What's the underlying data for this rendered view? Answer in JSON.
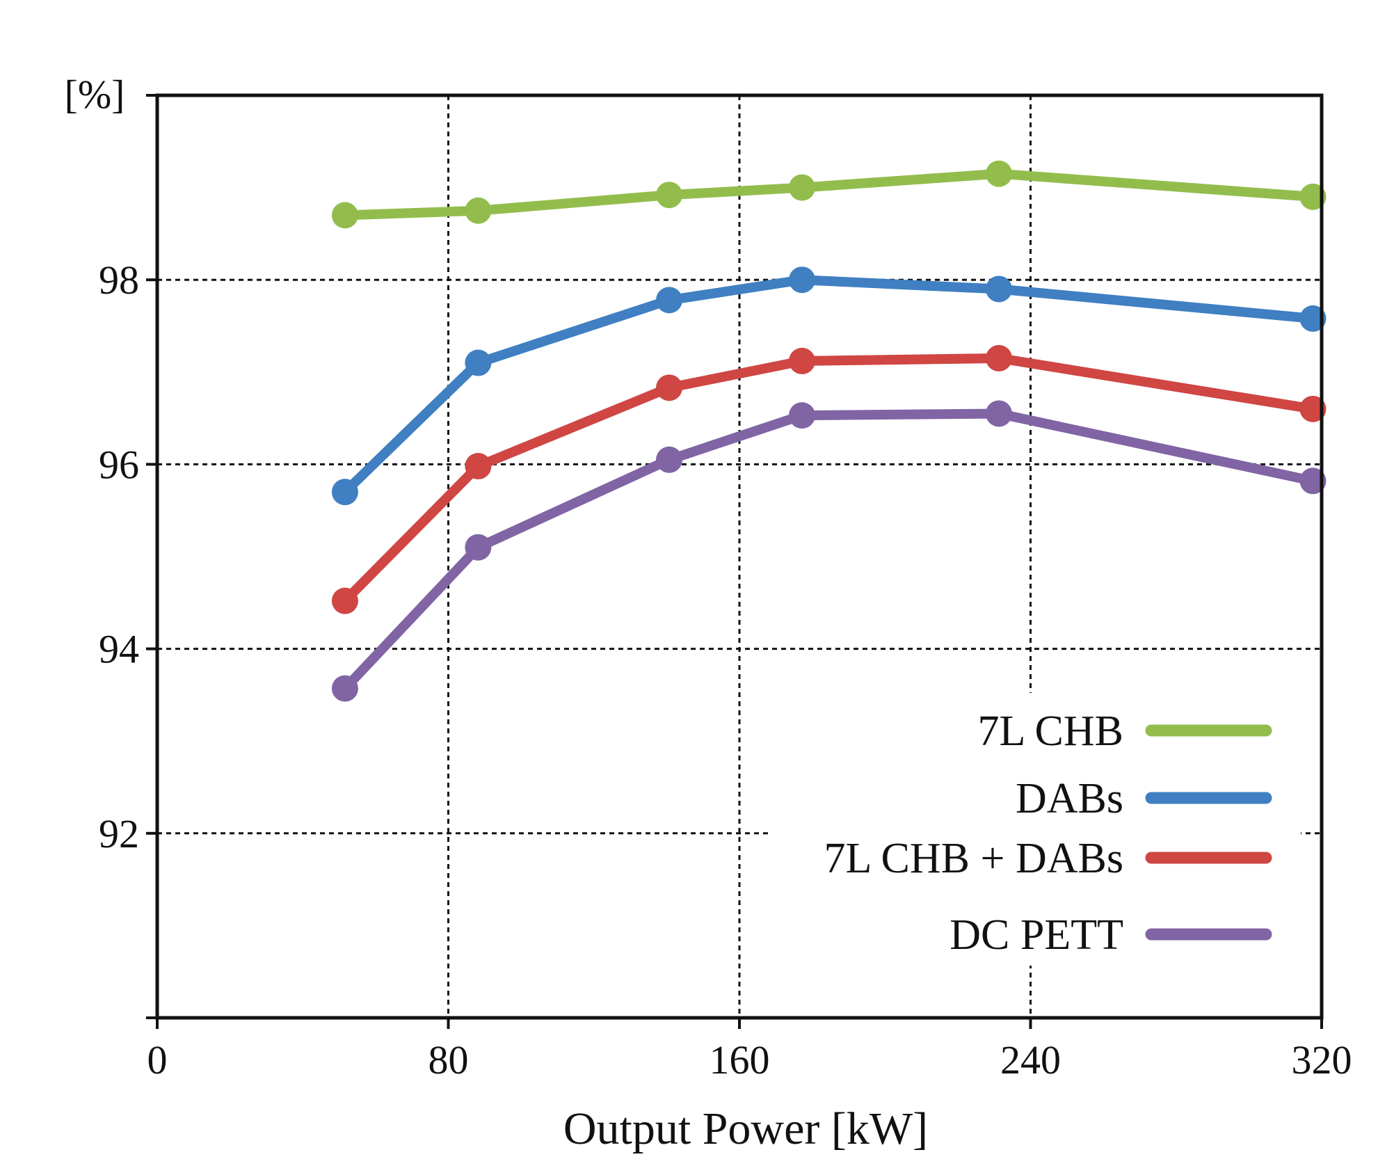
{
  "chart_data": {
    "type": "line",
    "title": "",
    "xlabel": "Output Power [kW]",
    "ylabel": "[%]",
    "xlim": [
      0,
      320
    ],
    "ylim": [
      90,
      100
    ],
    "x_ticks": [
      0,
      80,
      160,
      240,
      320
    ],
    "x_tick_labels": [
      "0",
      "80",
      "160",
      "240",
      "320"
    ],
    "y_ticks": [
      92,
      94,
      96,
      98
    ],
    "y_tick_labels": [
      "92",
      "94",
      "96",
      "98"
    ],
    "grid": true,
    "legend_position": "bottom-right",
    "x": [
      51.6,
      88.2,
      140.7,
      177.2,
      231.3,
      317.6
    ],
    "series": [
      {
        "name": "7L CHB",
        "color": "#92bd4d",
        "values": [
          98.7,
          98.75,
          98.92,
          99.0,
          99.15,
          98.9
        ]
      },
      {
        "name": "DABs",
        "color": "#3f7fc2",
        "values": [
          95.7,
          97.1,
          97.78,
          98.0,
          97.9,
          97.58
        ]
      },
      {
        "name": "7L CHB + DABs",
        "color": "#cf4643",
        "values": [
          94.52,
          95.98,
          96.83,
          97.12,
          97.15,
          96.6
        ]
      },
      {
        "name": "DC PETT",
        "color": "#8064a4",
        "values": [
          93.57,
          95.1,
          96.05,
          96.53,
          96.55,
          95.82
        ]
      }
    ]
  }
}
